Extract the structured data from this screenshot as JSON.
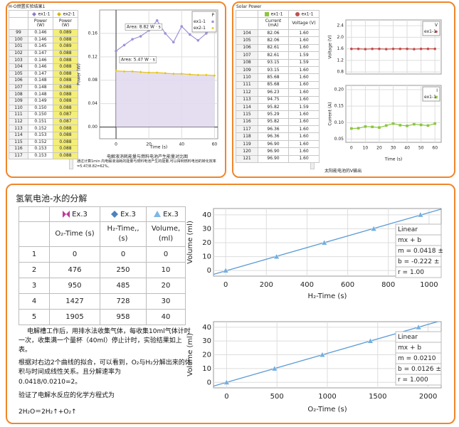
{
  "energy": {
    "title": "H-O燃置实验结果1",
    "series": [
      {
        "name": "ex1-1",
        "color": "#8e7cc3"
      },
      {
        "name": "ex2-1",
        "color": "#d9b800"
      }
    ],
    "columns": [
      "Power (W)",
      "Power (W)"
    ],
    "rows": [
      [
        "99",
        "0.146",
        "0.089"
      ],
      [
        "100",
        "0.146",
        "0.088"
      ],
      [
        "101",
        "0.145",
        "0.089"
      ],
      [
        "102",
        "0.147",
        "0.088"
      ],
      [
        "103",
        "0.146",
        "0.088"
      ],
      [
        "104",
        "0.146",
        "0.088"
      ],
      [
        "105",
        "0.147",
        "0.088"
      ],
      [
        "106",
        "0.148",
        "0.088"
      ],
      [
        "107",
        "0.148",
        "0.088"
      ],
      [
        "108",
        "0.148",
        "0.088"
      ],
      [
        "109",
        "0.149",
        "0.088"
      ],
      [
        "110",
        "0.150",
        "0.088"
      ],
      [
        "111",
        "0.150",
        "0.087"
      ],
      [
        "112",
        "0.151",
        "0.087"
      ],
      [
        "113",
        "0.152",
        "0.088"
      ],
      [
        "114",
        "0.153",
        "0.088"
      ],
      [
        "115",
        "0.152",
        "0.088"
      ],
      [
        "116",
        "0.153",
        "0.088"
      ],
      [
        "117",
        "0.153",
        "0.088"
      ]
    ],
    "caption": "电解液消耗能量与燃料电池产生能量对比图",
    "note": "通过计算1min 内电解液消耗的能量与燃料电池产生的能量,可以得到燃料电池的转化效率=5.47/8.82=62%。"
  },
  "solar": {
    "title": "Solar Power",
    "series": [
      {
        "name": "ex1-1",
        "color": "#8cc63f"
      },
      {
        "name": "ex1-1",
        "color": "#c0504d"
      }
    ],
    "columns": [
      "Current (mA)",
      "Voltage (V)"
    ],
    "rows": [
      [
        "104",
        "82.06",
        "1.60"
      ],
      [
        "105",
        "82.06",
        "1.60"
      ],
      [
        "106",
        "82.61",
        "1.60"
      ],
      [
        "107",
        "82.61",
        "1.59"
      ],
      [
        "108",
        "93.15",
        "1.59"
      ],
      [
        "109",
        "93.15",
        "1.60"
      ],
      [
        "110",
        "85.68",
        "1.60"
      ],
      [
        "111",
        "85.68",
        "1.60"
      ],
      [
        "112",
        "96.23",
        "1.60"
      ],
      [
        "113",
        "94.75",
        "1.60"
      ],
      [
        "114",
        "95.82",
        "1.59"
      ],
      [
        "115",
        "95.29",
        "1.60"
      ],
      [
        "116",
        "95.82",
        "1.60"
      ],
      [
        "117",
        "96.36",
        "1.60"
      ],
      [
        "118",
        "96.36",
        "1.60"
      ],
      [
        "119",
        "96.90",
        "1.60"
      ],
      [
        "120",
        "96.90",
        "1.60"
      ],
      [
        "121",
        "96.90",
        "1.60"
      ]
    ],
    "caption": "太阳能电池的V输出"
  },
  "electrolysis": {
    "title": "氢氧电池-水的分解",
    "series": [
      {
        "name": "Ex.3",
        "color": "#c0399a"
      },
      {
        "name": "Ex.3",
        "color": "#4f81bd"
      },
      {
        "name": "Ex.3",
        "color": "#7fb7e6"
      }
    ],
    "columns": [
      "O₂-Time (s)",
      "H₂-Time,, (s)",
      "Volume, (ml)"
    ],
    "rows": [
      [
        "1",
        "0",
        "0",
        "0"
      ],
      [
        "2",
        "476",
        "250",
        "10"
      ],
      [
        "3",
        "950",
        "485",
        "20"
      ],
      [
        "4",
        "1427",
        "728",
        "30"
      ],
      [
        "5",
        "1905",
        "958",
        "40"
      ]
    ],
    "paragraphs": [
      "电解槽工作后，用排水法收集气体，每收集10ml气体计时一次，收集满一个量杯（40ml）停止计时，实验结果如上表。",
      "根据对右边2个曲线的拟合，可以看到，O₂与H₂分解出来的体积与时间成线性关系。且分解速率为",
      "0.0418/0.0210=2。",
      "验证了电解水反应的化学方程式为",
      "2H₂O＝2H₂↑+O₂↑"
    ]
  },
  "chart_data": [
    {
      "type": "line",
      "x_label": "Time (s)",
      "y_label": "Power (W)",
      "x": [
        0,
        5,
        10,
        15,
        20,
        25,
        30,
        35,
        40,
        45,
        50,
        55,
        60
      ],
      "series": [
        {
          "name": "ex1-1",
          "color": "#9d92d8",
          "marker": "circle",
          "values": [
            0.13,
            0.14,
            0.15,
            0.155,
            0.165,
            0.182,
            0.16,
            0.145,
            0.172,
            0.158,
            0.148,
            0.16,
            0.172
          ]
        },
        {
          "name": "ex2-1",
          "color": "#e3c41a",
          "marker": "diamond",
          "area": "#e2d9ee",
          "values": [
            0.096,
            0.095,
            0.095,
            0.094,
            0.093,
            0.093,
            0.092,
            0.091,
            0.091,
            0.09,
            0.089,
            0.089,
            0.088
          ]
        }
      ],
      "xlim": [
        -10,
        62
      ],
      "ylim": [
        -0.02,
        0.2
      ],
      "xticks": [
        0,
        20,
        40,
        60
      ],
      "yticks": [
        {
          "value": 0,
          "label": "0.00"
        },
        0.04,
        0.08,
        0.12,
        0.16
      ],
      "grid": true,
      "legend": "upper right",
      "legend_title": "P",
      "annotations": [
        "Area: 8.82 W · s",
        "Area: 5.47 W · s"
      ]
    },
    {
      "type": "line",
      "y_label": "Voltage (V)",
      "x": [
        0,
        5,
        10,
        15,
        20,
        25,
        30,
        35,
        40,
        45,
        50,
        55,
        60
      ],
      "series": [
        {
          "name": "ex1-1",
          "color": "#c0504d",
          "marker": "circle",
          "values": [
            1.6,
            1.6,
            1.59,
            1.6,
            1.6,
            1.59,
            1.6,
            1.6,
            1.6,
            1.59,
            1.6,
            1.6,
            1.6
          ]
        }
      ],
      "xlim": [
        -4,
        64.5
      ],
      "ylim": [
        0.73,
        2.6
      ],
      "xticks": [
        0,
        10,
        20,
        30,
        40,
        50,
        60
      ],
      "x_tick_labels": false,
      "yticks": [
        0.8,
        1.2,
        1.6,
        {
          "value": 2,
          "label": "2.0"
        },
        2.4
      ],
      "grid": true,
      "legend": "upper right",
      "legend_title": "V"
    },
    {
      "type": "line",
      "x_label": "Time (s)",
      "y_label": "Current (A)",
      "x": [
        0,
        5,
        10,
        15,
        20,
        25,
        30,
        35,
        40,
        45,
        50,
        55,
        60
      ],
      "series": [
        {
          "name": "ex1-1",
          "color": "#8cc63f",
          "marker": "square",
          "values": [
            0.082,
            0.083,
            0.088,
            0.087,
            0.085,
            0.091,
            0.097,
            0.092,
            0.09,
            0.095,
            0.093,
            0.091,
            0.097
          ]
        }
      ],
      "xlim": [
        -4,
        64.5
      ],
      "ylim": [
        0.04,
        0.213
      ],
      "xticks": [
        0,
        10,
        20,
        30,
        40,
        50,
        60
      ],
      "yticks": [
        0.05,
        {
          "value": 0.1,
          "label": "0.10"
        },
        0.15,
        {
          "value": 0.2,
          "label": "0.20"
        }
      ],
      "grid": true,
      "legend": "upper right",
      "legend_title": "I"
    },
    {
      "type": "scatter",
      "x_label": "H₂-Time (s)",
      "y_label": "Volume (ml)",
      "series": [
        {
          "color": "#72aee0",
          "marker": "triangle",
          "x": [
            0,
            250,
            485,
            728,
            958
          ],
          "values": [
            0,
            10,
            20,
            30,
            40
          ]
        }
      ],
      "xlim": [
        -60,
        1060
      ],
      "ylim": [
        -4,
        44.5
      ],
      "xticks": [
        0,
        200,
        400,
        600,
        800,
        1000
      ],
      "yticks": [
        0,
        10,
        20,
        30,
        40
      ],
      "grid": true,
      "fit": "linear",
      "fit_text": [
        "Linear",
        "mx + b",
        "m = 0.0418 ±",
        "b = -0.222 ±",
        "r = 1.00"
      ]
    },
    {
      "type": "scatter",
      "x_label": "O₂-Time (s)",
      "y_label": "Volume (ml)",
      "series": [
        {
          "color": "#72aee0",
          "marker": "triangle",
          "x": [
            0,
            476,
            950,
            1427,
            1905
          ],
          "values": [
            0,
            10,
            20,
            30,
            40
          ]
        }
      ],
      "xlim": [
        -130,
        2130
      ],
      "ylim": [
        -4,
        44
      ],
      "xticks": [
        0,
        500,
        1000,
        1500,
        2000
      ],
      "yticks": [
        0,
        10,
        20,
        30,
        40
      ],
      "grid": true,
      "fit": "linear",
      "fit_text": [
        "Linear",
        "mx + b",
        "m = 0.0210",
        "b = 0.0126 ±",
        "r = 1.000"
      ]
    }
  ]
}
